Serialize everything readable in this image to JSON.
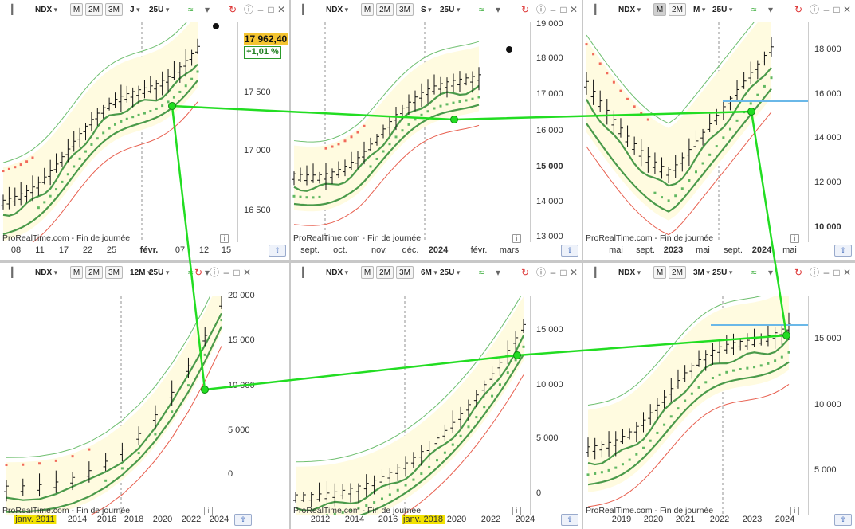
{
  "panels": [
    {
      "id": "j",
      "symbol": "NDX",
      "timeframe": "J",
      "bb_period": "25U",
      "buttons": [
        "M",
        "2M",
        "3M"
      ],
      "active_btn": -1,
      "footer": "ProRealTime.com - Fin de journée",
      "y_labels": [
        {
          "t": "17 500"
        },
        {
          "t": "17 000"
        },
        {
          "t": "16 500"
        }
      ],
      "x_labels": [
        {
          "t": "08"
        },
        {
          "t": "11"
        },
        {
          "t": "17"
        },
        {
          "t": "22"
        },
        {
          "t": "25"
        },
        {
          "t": "févr.",
          "b": true
        },
        {
          "t": "07"
        },
        {
          "t": "12"
        },
        {
          "t": "15"
        }
      ],
      "last_price": "17 962,40",
      "change": "+1,01 %"
    },
    {
      "id": "s",
      "symbol": "NDX",
      "timeframe": "S",
      "bb_period": "25U",
      "buttons": [
        "M",
        "2M",
        "3M"
      ],
      "active_btn": -1,
      "footer": "ProRealTime.com - Fin de journée",
      "y_labels": [
        {
          "t": "19 000"
        },
        {
          "t": "18 000"
        },
        {
          "t": "17 000"
        },
        {
          "t": "16 000"
        },
        {
          "t": "15 000",
          "b": true
        },
        {
          "t": "14 000"
        },
        {
          "t": "13 000"
        }
      ],
      "x_labels": [
        {
          "t": "sept."
        },
        {
          "t": "oct."
        },
        {
          "t": "nov."
        },
        {
          "t": "déc."
        },
        {
          "t": "2024",
          "b": true
        },
        {
          "t": "févr."
        },
        {
          "t": "mars"
        }
      ]
    },
    {
      "id": "m",
      "symbol": "NDX",
      "timeframe": "M",
      "bb_period": "25U",
      "buttons": [
        "M",
        "2M"
      ],
      "active_btn": 0,
      "footer": "ProRealTime.com - Fin de journée",
      "y_labels": [
        {
          "t": "18 000"
        },
        {
          "t": "16 000"
        },
        {
          "t": "14 000"
        },
        {
          "t": "12 000"
        },
        {
          "t": "10 000",
          "b": true
        }
      ],
      "x_labels": [
        {
          "t": "mai"
        },
        {
          "t": "sept."
        },
        {
          "t": "2023",
          "b": true
        },
        {
          "t": "mai"
        },
        {
          "t": "sept."
        },
        {
          "t": "2024",
          "b": true
        },
        {
          "t": "mai"
        }
      ]
    },
    {
      "id": "12m",
      "symbol": "NDX",
      "timeframe": "12M",
      "bb_period": "25U",
      "buttons": [
        "M",
        "2M",
        "3M"
      ],
      "active_btn": -1,
      "footer": "ProRealTime.com - Fin de journée",
      "y_labels": [
        {
          "t": "20 000"
        },
        {
          "t": "15 000"
        },
        {
          "t": "10 000"
        },
        {
          "t": "5 000"
        },
        {
          "t": "0"
        }
      ],
      "x_labels": [
        {
          "t": "janv. 2011",
          "hl": true
        },
        {
          "t": "2014"
        },
        {
          "t": "2016"
        },
        {
          "t": "2018"
        },
        {
          "t": "2020"
        },
        {
          "t": "2022"
        },
        {
          "t": "2024"
        }
      ]
    },
    {
      "id": "6m",
      "symbol": "NDX",
      "timeframe": "6M",
      "bb_period": "25U",
      "buttons": [
        "M",
        "2M",
        "3M"
      ],
      "active_btn": -1,
      "footer": "ProRealTime.com - Fin de journée",
      "y_labels": [
        {
          "t": "15 000"
        },
        {
          "t": "10 000"
        },
        {
          "t": "5 000"
        },
        {
          "t": "0"
        }
      ],
      "x_labels": [
        {
          "t": "2012"
        },
        {
          "t": "2014"
        },
        {
          "t": "2016"
        },
        {
          "t": "janv. 2018",
          "hl": true
        },
        {
          "t": "2020"
        },
        {
          "t": "2022"
        },
        {
          "t": "2024"
        }
      ]
    },
    {
      "id": "3m",
      "symbol": "NDX",
      "timeframe": "3M",
      "bb_period": "25U",
      "buttons": [
        "M",
        "2M"
      ],
      "active_btn": -1,
      "footer": "ProRealTime.com - Fin de journée",
      "y_labels": [
        {
          "t": "15 000"
        },
        {
          "t": "10 000"
        },
        {
          "t": "5 000"
        }
      ],
      "x_labels": [
        {
          "t": "2019"
        },
        {
          "t": "2020"
        },
        {
          "t": "2021"
        },
        {
          "t": "2022"
        },
        {
          "t": "2023"
        },
        {
          "t": "2024"
        }
      ]
    }
  ],
  "icons": {
    "chart_type": "bar-chart-icon",
    "indicators": "indicators-icon",
    "settings": "settings-dropdown-icon",
    "refresh": "refresh-icon",
    "info": "info-icon",
    "minimize": "minimize-icon",
    "maximize": "maximize-icon",
    "close": "close-icon",
    "chart_ready": "chart-type-icon"
  },
  "colors": {
    "upper_band": "#6fbf6f",
    "ma": "#4a9a4a",
    "band_fill": "#fffbe0",
    "sar_red": "#f26a5a",
    "sar_green": "#62b862",
    "mid_red": "#e86050",
    "trend_line": "#22dd22",
    "hline": "#6ab8e8",
    "candles": "#111111"
  }
}
